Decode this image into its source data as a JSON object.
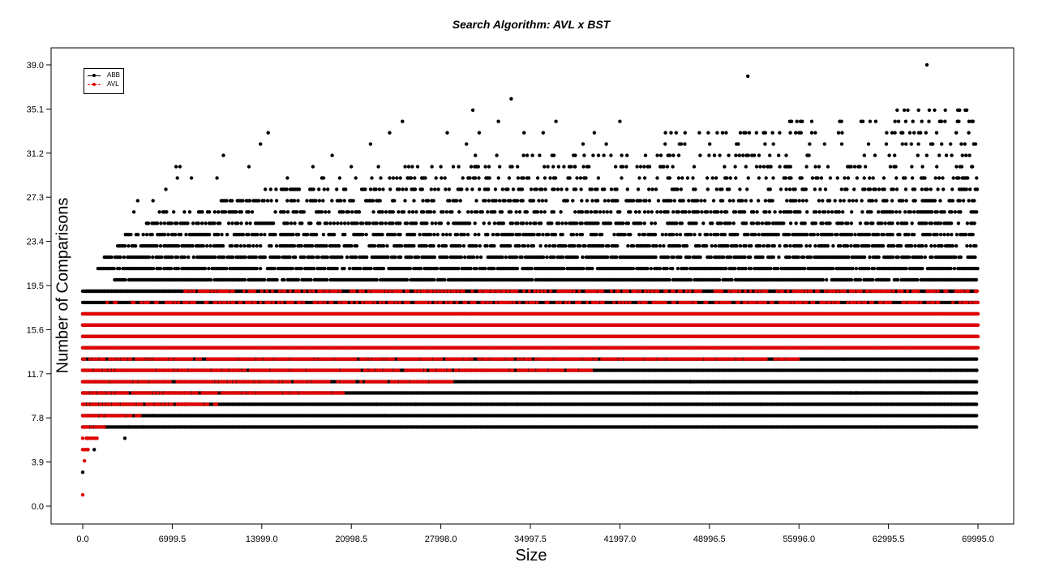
{
  "chart_data": {
    "type": "scatter",
    "title": "Search Algorithm: AVL x BST",
    "xlabel": "Size",
    "ylabel": "Number of Comparisons",
    "xlim": [
      0,
      69995
    ],
    "ylim": [
      0,
      39
    ],
    "x_ticks": [
      "0.0",
      "6999.5",
      "13999.0",
      "20998.5",
      "27998.0",
      "34997.5",
      "41997.0",
      "48996.5",
      "55996.0",
      "62995.5",
      "69995.0"
    ],
    "y_ticks": [
      "0.0",
      "3.9",
      "7.8",
      "11.7",
      "15.6",
      "19.5",
      "23.4",
      "27.3",
      "31.2",
      "35.1",
      "39.0"
    ],
    "legend_position": "top-left",
    "grid": false,
    "series": [
      {
        "name": "ABB",
        "color": "#000000",
        "description_levels": [
          {
            "y": 19,
            "from": 300
          },
          {
            "y": 20,
            "from": 2500
          },
          {
            "y": 21,
            "from": 1200
          },
          {
            "y": 22,
            "from": 1700
          },
          {
            "y": 23,
            "from": 2600
          },
          {
            "y": 24,
            "from": 3200
          },
          {
            "y": 25,
            "from": 5000
          },
          {
            "y": 26,
            "from": 6000
          },
          {
            "y": 27,
            "from": 10000
          },
          {
            "y": 28,
            "from": 14000
          },
          {
            "y": 29,
            "from": 18000
          },
          {
            "y": 30,
            "from": 22000
          },
          {
            "y": 31,
            "from": 30000
          },
          {
            "y": 32,
            "from": 38000
          },
          {
            "y": 33,
            "from": 45000
          },
          {
            "y": 34,
            "from": 55000
          },
          {
            "y": 35,
            "from": 62000
          }
        ],
        "sparse_points": [
          [
            0,
            3
          ],
          [
            300,
            6
          ],
          [
            900,
            5
          ],
          [
            700,
            7
          ],
          [
            1500,
            8
          ],
          [
            1700,
            7
          ],
          [
            3300,
            6
          ],
          [
            3600,
            7
          ],
          [
            4700,
            7
          ],
          [
            5500,
            8
          ],
          [
            7500,
            8
          ],
          [
            8000,
            9
          ],
          [
            1000,
            11
          ],
          [
            1500,
            10
          ],
          [
            2000,
            9
          ],
          [
            4000,
            26
          ],
          [
            4300,
            27
          ],
          [
            5000,
            25
          ],
          [
            5500,
            27
          ],
          [
            6500,
            28
          ],
          [
            7300,
            30
          ],
          [
            7600,
            30
          ],
          [
            7400,
            29
          ],
          [
            8500,
            29
          ],
          [
            10500,
            29
          ],
          [
            11000,
            31
          ],
          [
            13000,
            30
          ],
          [
            13900,
            32
          ],
          [
            14500,
            33
          ],
          [
            16000,
            29
          ],
          [
            18000,
            30
          ],
          [
            19500,
            31
          ],
          [
            21000,
            30
          ],
          [
            22500,
            32
          ],
          [
            23600,
            8
          ],
          [
            24000,
            33
          ],
          [
            25000,
            34
          ],
          [
            26000,
            9
          ],
          [
            23000,
            9
          ],
          [
            28500,
            33
          ],
          [
            29000,
            8
          ],
          [
            28000,
            30
          ],
          [
            30000,
            32
          ],
          [
            30500,
            35
          ],
          [
            31000,
            33
          ],
          [
            32500,
            34
          ],
          [
            33000,
            9
          ],
          [
            33500,
            36
          ],
          [
            34000,
            9
          ],
          [
            34500,
            33
          ],
          [
            36000,
            33
          ],
          [
            37000,
            34
          ],
          [
            38500,
            30
          ],
          [
            40000,
            33
          ],
          [
            42000,
            34
          ],
          [
            44000,
            31
          ],
          [
            46000,
            33
          ],
          [
            47500,
            11
          ],
          [
            49000,
            10
          ],
          [
            52000,
            38
          ],
          [
            52500,
            31
          ],
          [
            53000,
            9
          ],
          [
            54000,
            32
          ],
          [
            55000,
            31
          ],
          [
            56000,
            33
          ],
          [
            57000,
            34
          ],
          [
            58000,
            32
          ],
          [
            59000,
            10
          ],
          [
            59500,
            13
          ],
          [
            60000,
            10
          ],
          [
            60500,
            10
          ],
          [
            61000,
            34
          ],
          [
            62000,
            34
          ],
          [
            63500,
            33
          ],
          [
            64000,
            33
          ],
          [
            65000,
            33
          ],
          [
            65500,
            10
          ],
          [
            66000,
            39
          ],
          [
            66300,
            12
          ],
          [
            67000,
            34
          ],
          [
            68500,
            34
          ],
          [
            69000,
            35
          ],
          [
            69300,
            34
          ],
          [
            69700,
            14
          ],
          [
            69900,
            12
          ],
          [
            69500,
            30
          ],
          [
            69600,
            34
          ]
        ]
      },
      {
        "name": "AVL",
        "color": "#e00000",
        "description_levels": [
          {
            "y": 1,
            "from": 0,
            "to": 0
          },
          {
            "y": 4,
            "from": 0,
            "to": 300
          },
          {
            "y": 5,
            "from": 0,
            "to": 500
          },
          {
            "y": 6,
            "from": 0,
            "to": 1200
          },
          {
            "y": 7,
            "from": 0,
            "to": 1900
          },
          {
            "y": 8,
            "from": 0,
            "to": 4500
          },
          {
            "y": 9,
            "from": 0,
            "to": 10500
          },
          {
            "y": 10,
            "from": 0,
            "to": 20500
          },
          {
            "y": 11,
            "from": 0,
            "to": 29000
          },
          {
            "y": 12,
            "from": 0,
            "to": 40000
          },
          {
            "y": 13,
            "from": 0,
            "to": 56000
          },
          {
            "y": 14,
            "from": 0,
            "to": 69995
          },
          {
            "y": 15,
            "from": 0,
            "to": 69995
          },
          {
            "y": 16,
            "from": 0,
            "to": 69995
          },
          {
            "y": 17,
            "from": 0,
            "to": 69995
          },
          {
            "y": 18,
            "from": 1500,
            "to": 69995
          },
          {
            "y": 19,
            "from": 8000,
            "to": 69995
          }
        ]
      }
    ]
  }
}
